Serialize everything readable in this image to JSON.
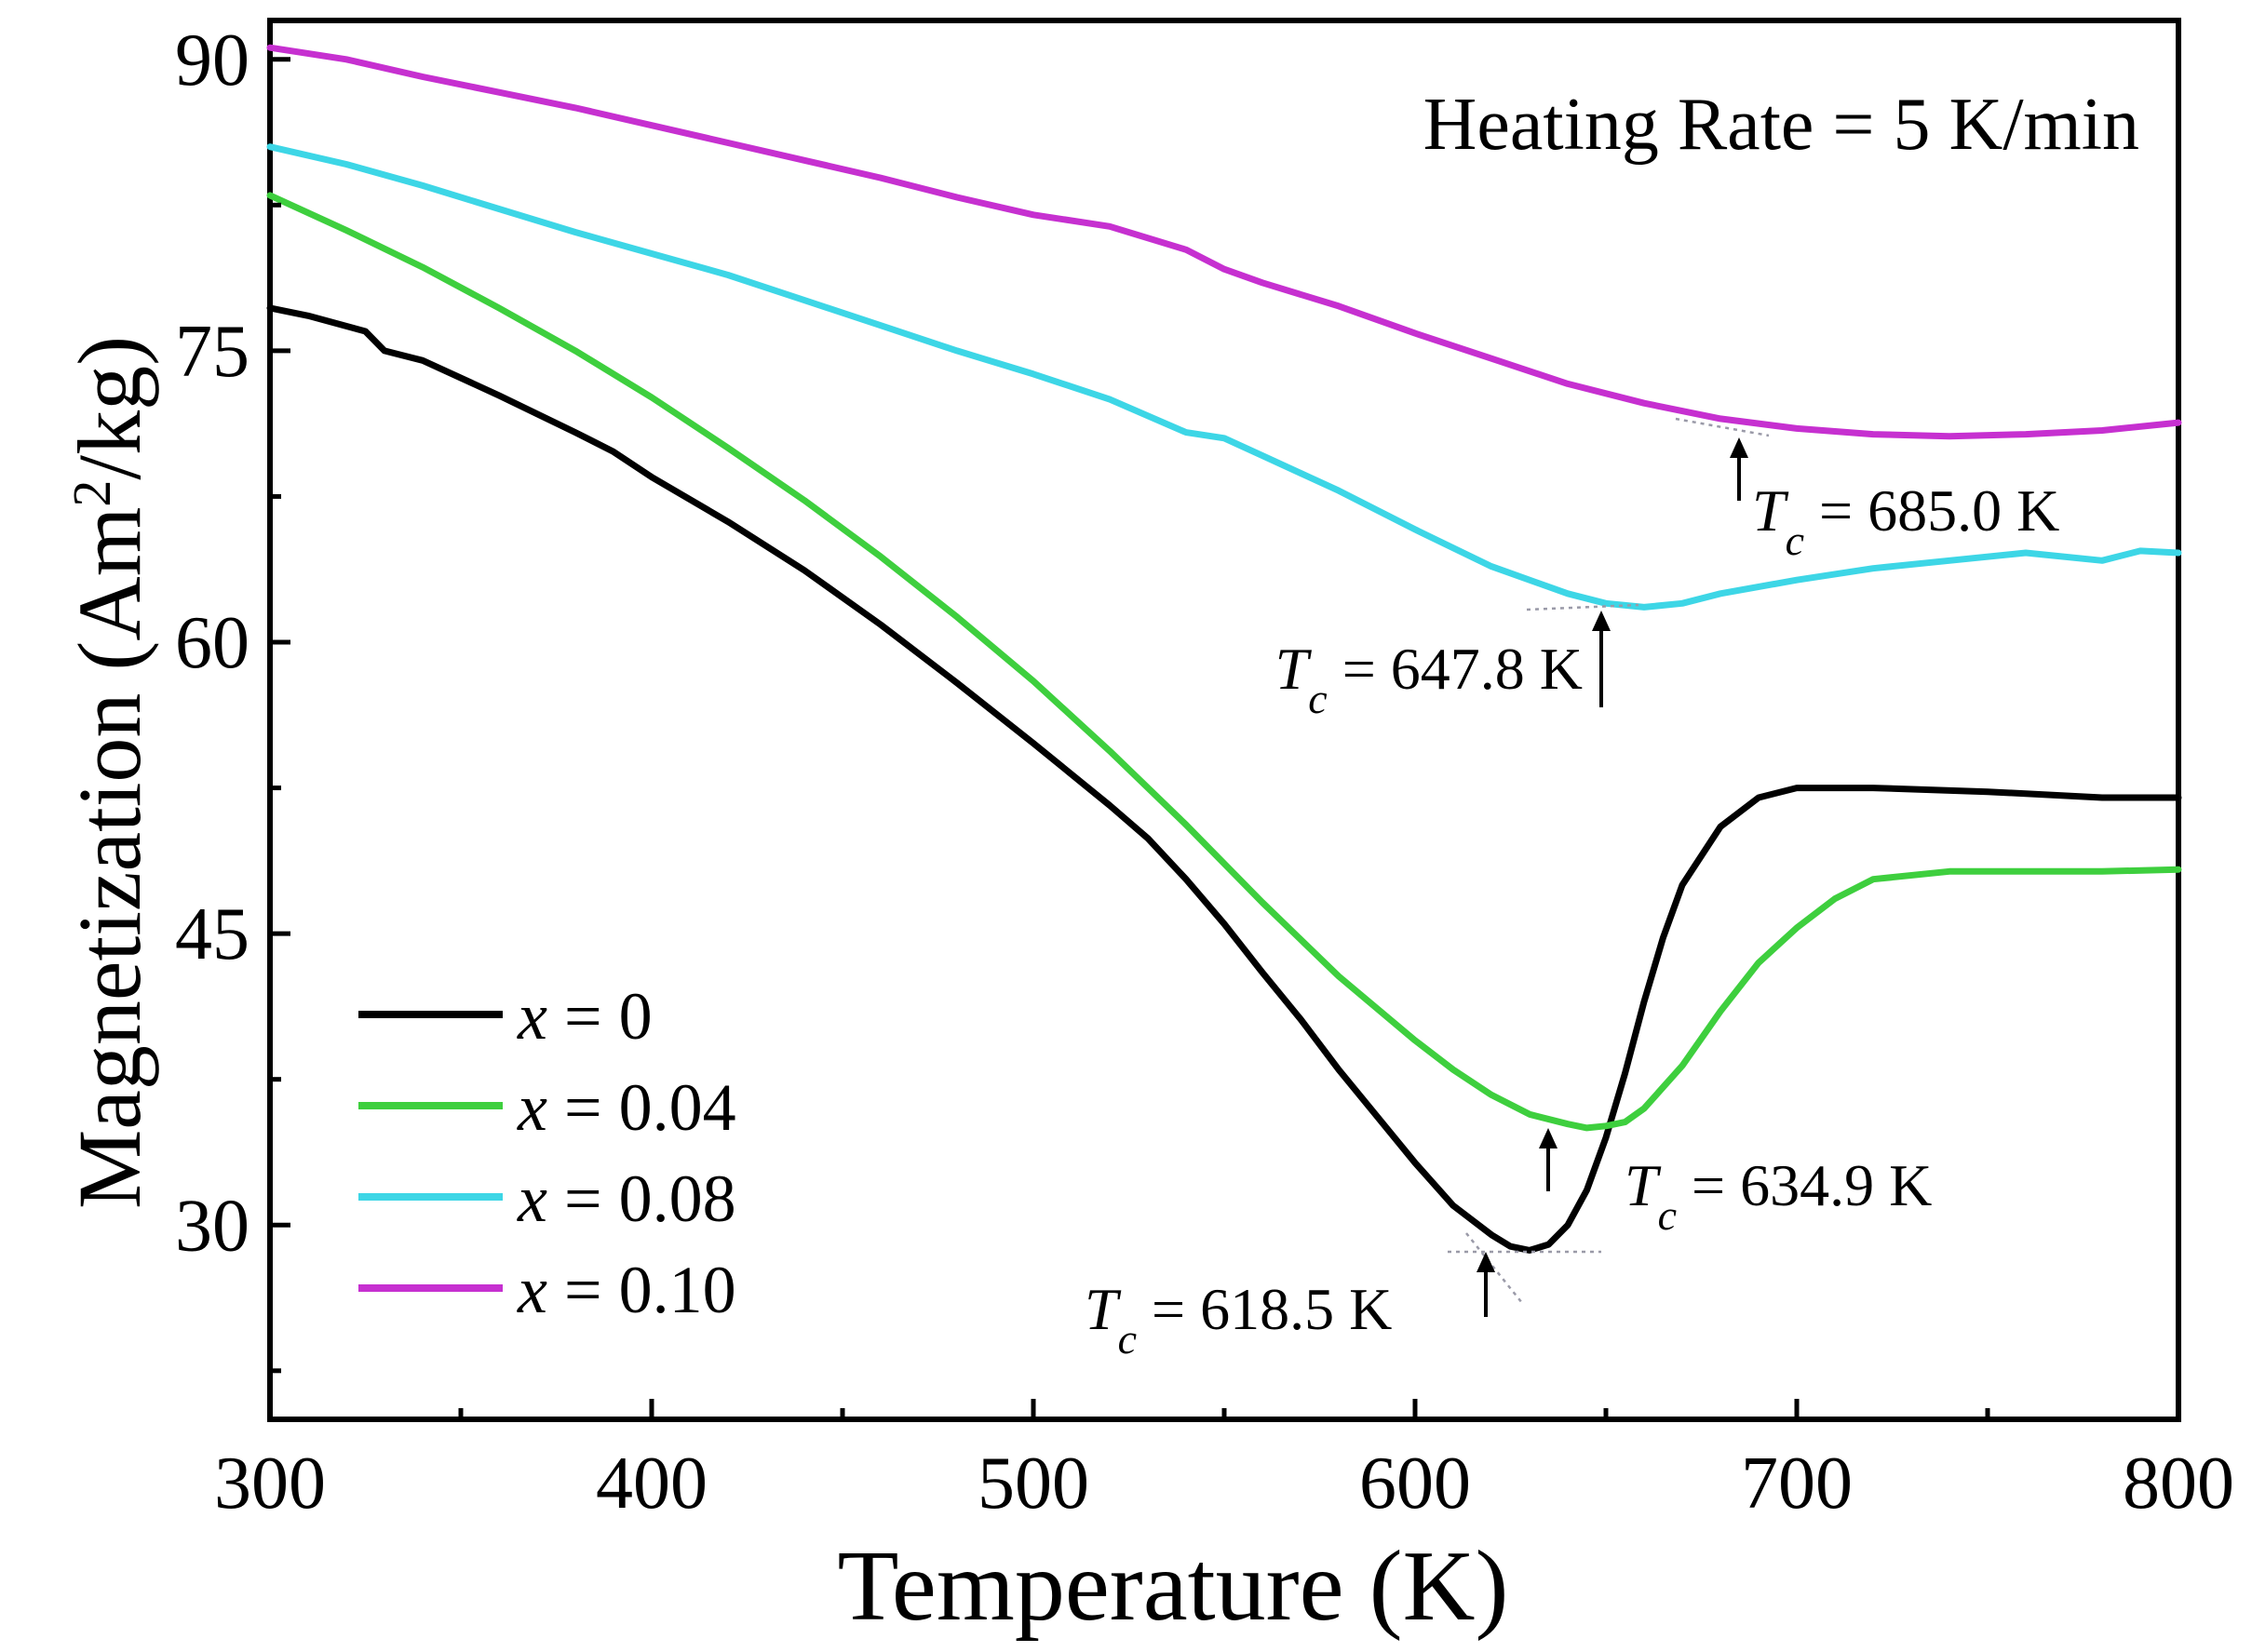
{
  "chart_data": {
    "type": "line",
    "title": "",
    "xlabel": "Temperature (K)",
    "ylabel_main": "Magnetization (Am",
    "ylabel_sup": "2",
    "ylabel_tail": "/kg)",
    "xlim": [
      300,
      800
    ],
    "ylim": [
      20,
      92
    ],
    "xticks": [
      300,
      400,
      500,
      600,
      700,
      800
    ],
    "yticks": [
      30,
      45,
      60,
      75,
      90
    ],
    "annotation": "Heating Rate = 5 K/min",
    "legend_position": "bottom-left",
    "series": [
      {
        "name": "x = 0",
        "label_var": "x",
        "label_val": " = 0",
        "color": "#000000",
        "points": [
          [
            300,
            77.2
          ],
          [
            310,
            76.8
          ],
          [
            325,
            76.0
          ],
          [
            330,
            75.0
          ],
          [
            340,
            74.5
          ],
          [
            360,
            72.7
          ],
          [
            380,
            70.8
          ],
          [
            390,
            69.8
          ],
          [
            400,
            68.5
          ],
          [
            420,
            66.2
          ],
          [
            440,
            63.7
          ],
          [
            460,
            60.9
          ],
          [
            480,
            57.9
          ],
          [
            500,
            54.8
          ],
          [
            520,
            51.6
          ],
          [
            530,
            49.9
          ],
          [
            540,
            47.8
          ],
          [
            550,
            45.5
          ],
          [
            560,
            43.0
          ],
          [
            570,
            40.6
          ],
          [
            580,
            38.0
          ],
          [
            590,
            35.6
          ],
          [
            600,
            33.2
          ],
          [
            610,
            31.0
          ],
          [
            620,
            29.5
          ],
          [
            625,
            28.9
          ],
          [
            630,
            28.7
          ],
          [
            635,
            29.0
          ],
          [
            640,
            30.0
          ],
          [
            645,
            31.8
          ],
          [
            650,
            34.5
          ],
          [
            655,
            37.8
          ],
          [
            660,
            41.5
          ],
          [
            665,
            44.8
          ],
          [
            670,
            47.5
          ],
          [
            680,
            50.5
          ],
          [
            690,
            52.0
          ],
          [
            700,
            52.5
          ],
          [
            720,
            52.5
          ],
          [
            750,
            52.3
          ],
          [
            780,
            52.0
          ],
          [
            800,
            52.0
          ]
        ]
      },
      {
        "name": "x = 0.04",
        "label_var": "x",
        "label_val": " = 0.04",
        "color": "#3ecf3e",
        "points": [
          [
            300,
            83.0
          ],
          [
            320,
            81.2
          ],
          [
            340,
            79.3
          ],
          [
            360,
            77.2
          ],
          [
            380,
            75.0
          ],
          [
            400,
            72.6
          ],
          [
            420,
            70.0
          ],
          [
            440,
            67.3
          ],
          [
            460,
            64.4
          ],
          [
            480,
            61.3
          ],
          [
            500,
            58.0
          ],
          [
            520,
            54.4
          ],
          [
            540,
            50.6
          ],
          [
            560,
            46.6
          ],
          [
            580,
            42.8
          ],
          [
            600,
            39.5
          ],
          [
            610,
            38.0
          ],
          [
            620,
            36.7
          ],
          [
            630,
            35.7
          ],
          [
            640,
            35.2
          ],
          [
            645,
            35.0
          ],
          [
            650,
            35.1
          ],
          [
            655,
            35.3
          ],
          [
            660,
            36.0
          ],
          [
            670,
            38.2
          ],
          [
            680,
            41.0
          ],
          [
            690,
            43.5
          ],
          [
            700,
            45.3
          ],
          [
            710,
            46.8
          ],
          [
            720,
            47.8
          ],
          [
            740,
            48.2
          ],
          [
            760,
            48.2
          ],
          [
            780,
            48.2
          ],
          [
            800,
            48.3
          ]
        ]
      },
      {
        "name": "x = 0.08",
        "label_var": "x",
        "label_val": " = 0.08",
        "color": "#3dd6e6",
        "points": [
          [
            300,
            85.5
          ],
          [
            320,
            84.6
          ],
          [
            340,
            83.5
          ],
          [
            360,
            82.3
          ],
          [
            380,
            81.1
          ],
          [
            400,
            80.0
          ],
          [
            420,
            78.9
          ],
          [
            440,
            77.6
          ],
          [
            460,
            76.3
          ],
          [
            480,
            75.0
          ],
          [
            500,
            73.8
          ],
          [
            520,
            72.5
          ],
          [
            540,
            70.8
          ],
          [
            550,
            70.5
          ],
          [
            560,
            69.6
          ],
          [
            580,
            67.8
          ],
          [
            600,
            65.8
          ],
          [
            620,
            63.9
          ],
          [
            640,
            62.5
          ],
          [
            650,
            62.0
          ],
          [
            660,
            61.8
          ],
          [
            670,
            62.0
          ],
          [
            680,
            62.5
          ],
          [
            700,
            63.2
          ],
          [
            720,
            63.8
          ],
          [
            740,
            64.2
          ],
          [
            760,
            64.6
          ],
          [
            780,
            64.2
          ],
          [
            790,
            64.7
          ],
          [
            800,
            64.6
          ]
        ]
      },
      {
        "name": "x = 0.10",
        "label_var": "x",
        "label_val": " = 0.10",
        "color": "#c630d0",
        "points": [
          [
            300,
            90.6
          ],
          [
            320,
            90.0
          ],
          [
            340,
            89.1
          ],
          [
            360,
            88.3
          ],
          [
            380,
            87.5
          ],
          [
            400,
            86.6
          ],
          [
            420,
            85.7
          ],
          [
            440,
            84.8
          ],
          [
            460,
            83.9
          ],
          [
            480,
            82.9
          ],
          [
            500,
            82.0
          ],
          [
            520,
            81.4
          ],
          [
            540,
            80.2
          ],
          [
            550,
            79.2
          ],
          [
            560,
            78.5
          ],
          [
            580,
            77.3
          ],
          [
            600,
            75.9
          ],
          [
            620,
            74.6
          ],
          [
            640,
            73.3
          ],
          [
            660,
            72.3
          ],
          [
            680,
            71.5
          ],
          [
            700,
            71.0
          ],
          [
            720,
            70.7
          ],
          [
            740,
            70.6
          ],
          [
            760,
            70.7
          ],
          [
            780,
            70.9
          ],
          [
            800,
            71.3
          ]
        ]
      }
    ],
    "tc_labels": [
      {
        "var": "T",
        "sub": "c",
        "text": " = 685.0 K",
        "x": 685.0
      },
      {
        "var": "T",
        "sub": "c",
        "text": " = 647.8 K",
        "x": 647.8
      },
      {
        "var": "T",
        "sub": "c",
        "text": " = 634.9 K",
        "x": 634.9
      },
      {
        "var": "T",
        "sub": "c",
        "text": " = 618.5 K",
        "x": 618.5
      }
    ]
  }
}
